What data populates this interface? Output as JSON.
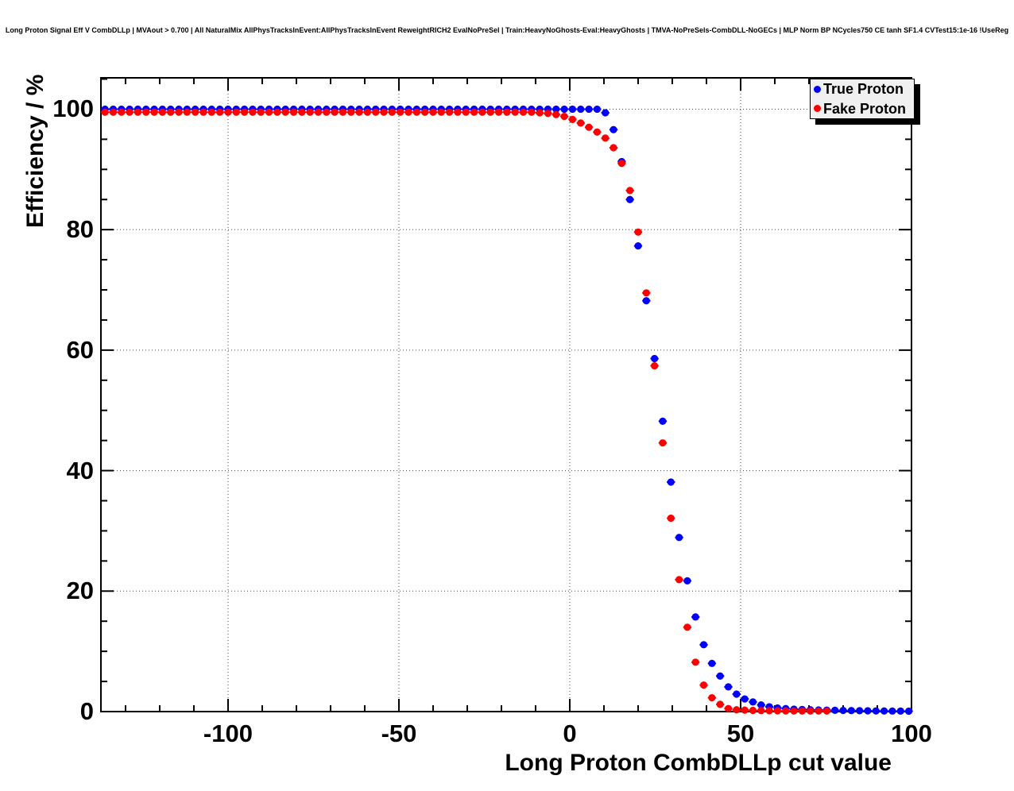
{
  "chart_data": {
    "type": "scatter",
    "title": "Long Proton Signal Eff V CombDLLp | MVAout > 0.700 | All NaturalMix AllPhysTracksInEvent:AllPhysTracksInEvent ReweightRICH2 EvalNoPreSel | Train:HeavyNoGhosts-Eval:HeavyGhosts | TMVA-NoPreSels-CombDLL-NoGECs | MLP Norm BP NCycles750 CE tanh SF1.4 CVTest15:1e-16 !UseReg",
    "xlabel": "Long Proton CombDLLp cut value",
    "ylabel": "Efficiency / %",
    "xlim": [
      -137.2,
      100
    ],
    "ylim": [
      0,
      105.2
    ],
    "grid": "dotted-major",
    "legend_position": "top-right",
    "marker": "filled-circle",
    "x_error_half_width": 1.2,
    "xticks": {
      "major": [
        -100,
        -50,
        0,
        50,
        100
      ],
      "labels": [
        "-100",
        "-50",
        "0",
        "50",
        "100"
      ],
      "minor_step": 10
    },
    "yticks": {
      "major": [
        0,
        20,
        40,
        60,
        80,
        100
      ],
      "labels": [
        "0",
        "20",
        "40",
        "60",
        "80",
        "100"
      ],
      "minor_step": 5
    },
    "series": [
      {
        "name": "True Proton",
        "color": "#0000ff",
        "x_start": -136,
        "x_step": 2.4,
        "values": [
          100,
          100,
          100,
          100,
          100,
          100,
          100,
          100,
          100,
          100,
          100,
          100,
          100,
          100,
          100,
          100,
          100,
          100,
          100,
          100,
          100,
          100,
          100,
          100,
          100,
          100,
          100,
          100,
          100,
          100,
          100,
          100,
          100,
          100,
          100,
          100,
          100,
          100,
          100,
          100,
          100,
          100,
          100,
          100,
          100,
          100,
          100,
          100,
          100,
          100,
          100,
          100,
          100,
          100,
          100,
          100,
          100,
          100,
          100,
          100,
          100,
          99.4,
          96.6,
          91.3,
          85,
          77.3,
          68.2,
          58.6,
          48.2,
          38.1,
          28.9,
          21.7,
          15.7,
          11.1,
          8,
          5.9,
          4.1,
          2.9,
          2.1,
          1.6,
          1.1,
          0.8,
          0.6,
          0.5,
          0.4,
          0.35,
          0.3,
          0.27,
          0.24,
          0.21,
          0.19,
          0.17,
          0.15,
          0.13,
          0.11,
          0.1,
          0.09,
          0.08,
          0.07
        ]
      },
      {
        "name": "Fake Proton",
        "color": "#ff0000",
        "x_start": -136,
        "x_step": 2.4,
        "values": [
          99.5,
          99.5,
          99.5,
          99.5,
          99.5,
          99.5,
          99.5,
          99.5,
          99.5,
          99.5,
          99.5,
          99.5,
          99.5,
          99.5,
          99.5,
          99.5,
          99.5,
          99.5,
          99.5,
          99.5,
          99.5,
          99.5,
          99.5,
          99.5,
          99.5,
          99.5,
          99.5,
          99.5,
          99.5,
          99.5,
          99.5,
          99.5,
          99.5,
          99.5,
          99.5,
          99.5,
          99.5,
          99.5,
          99.5,
          99.5,
          99.5,
          99.5,
          99.5,
          99.5,
          99.5,
          99.5,
          99.5,
          99.5,
          99.5,
          99.5,
          99.5,
          99.5,
          99.5,
          99.4,
          99.3,
          99.1,
          98.8,
          98.3,
          97.7,
          97,
          96.2,
          95.2,
          93.6,
          91,
          86.5,
          79.6,
          69.5,
          57.4,
          44.6,
          32.1,
          21.9,
          14,
          8.2,
          4.4,
          2.3,
          1.2,
          0.5,
          0.3,
          0.25,
          0.2,
          0.17,
          0.15,
          0.13,
          0.12,
          0.11,
          0.1,
          0.1,
          0.1,
          0.1
        ]
      }
    ]
  },
  "colors": {
    "background": "#ffffff",
    "frame": "#000000",
    "grid": "#444444",
    "legend_bg": "#f0f0f0",
    "legend_shadow": "#000000",
    "true_proton": "#0000ff",
    "fake_proton": "#ff0000"
  }
}
